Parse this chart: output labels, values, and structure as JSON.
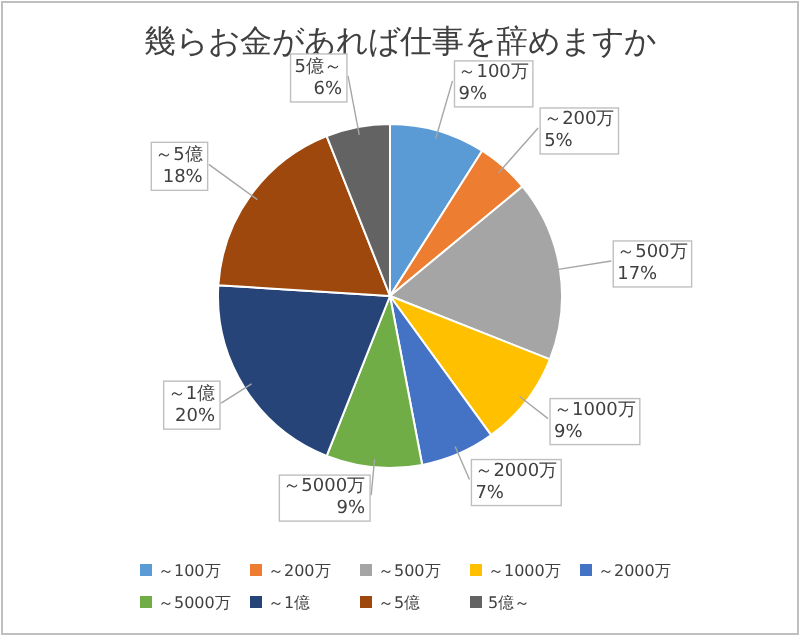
{
  "chart_data": {
    "type": "pie",
    "title": "幾らお金があれば仕事を辞めますか",
    "categories": [
      "～100万",
      "～200万",
      "～500万",
      "～1000万",
      "～2000万",
      "～5000万",
      "～1億",
      "～5億",
      "5億～"
    ],
    "values": [
      9,
      5,
      17,
      9,
      7,
      9,
      20,
      18,
      6
    ],
    "colors": [
      "#5b9bd5",
      "#ed7d31",
      "#a5a5a5",
      "#ffc000",
      "#4472c4",
      "#70ad47",
      "#264478",
      "#9e480e",
      "#636363"
    ],
    "value_labels": [
      "9%",
      "5%",
      "17%",
      "9%",
      "7%",
      "9%",
      "20%",
      "18%",
      "6%"
    ],
    "legend": "bottom"
  }
}
